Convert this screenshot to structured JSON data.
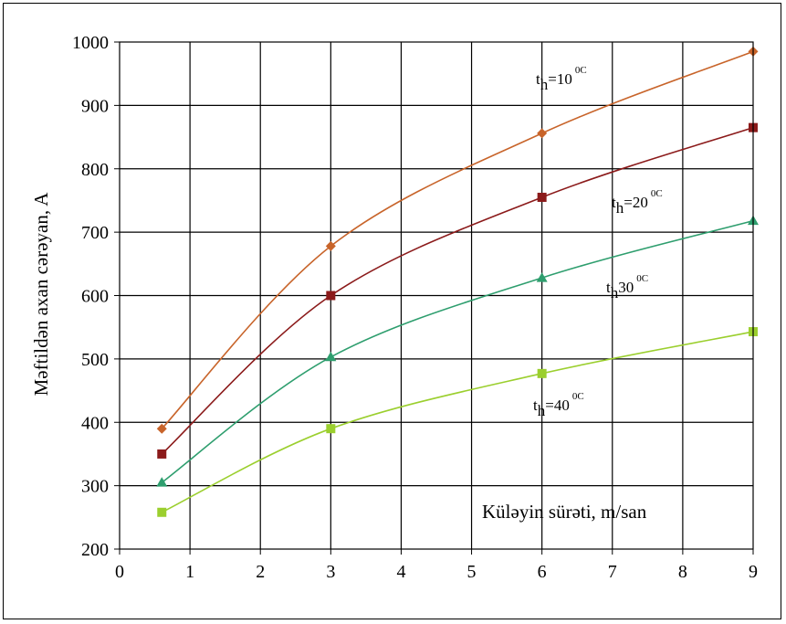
{
  "chart_data": {
    "type": "line",
    "title": "",
    "xlabel": "Küləyin sürəti, m/san",
    "ylabel": "Məftildən axan cərəyan, A",
    "xlim": [
      0,
      9
    ],
    "ylim": [
      200,
      1000
    ],
    "xticks": [
      "0",
      "1",
      "2",
      "3",
      "4",
      "5",
      "6",
      "7",
      "8",
      "9"
    ],
    "yticks": [
      "200",
      "300",
      "400",
      "500",
      "600",
      "700",
      "800",
      "900",
      "1000"
    ],
    "grid": true,
    "x": [
      0.6,
      3,
      6,
      9
    ],
    "series": [
      {
        "label_base": "t",
        "label_sub": "h",
        "label_value": "=10",
        "label_sup": "0C",
        "values": [
          390,
          678,
          856,
          985
        ],
        "color": "#C8642A",
        "marker": "diamond"
      },
      {
        "label_base": "t",
        "label_sub": "h",
        "label_value": "=20",
        "label_sup": "0C",
        "values": [
          350,
          600,
          755,
          865
        ],
        "color": "#8B1A1A",
        "marker": "square"
      },
      {
        "label_base": "t",
        "label_sub": "h",
        "label_value": "30",
        "label_sup": "0C",
        "values": [
          305,
          503,
          628,
          718
        ],
        "color": "#2E9E6E",
        "marker": "triangle"
      },
      {
        "label_base": "t",
        "label_sub": "h",
        "label_value": "=40",
        "label_sup": "0C",
        "values": [
          258,
          390,
          477,
          543
        ],
        "color": "#9BCF2E",
        "marker": "square"
      }
    ]
  }
}
